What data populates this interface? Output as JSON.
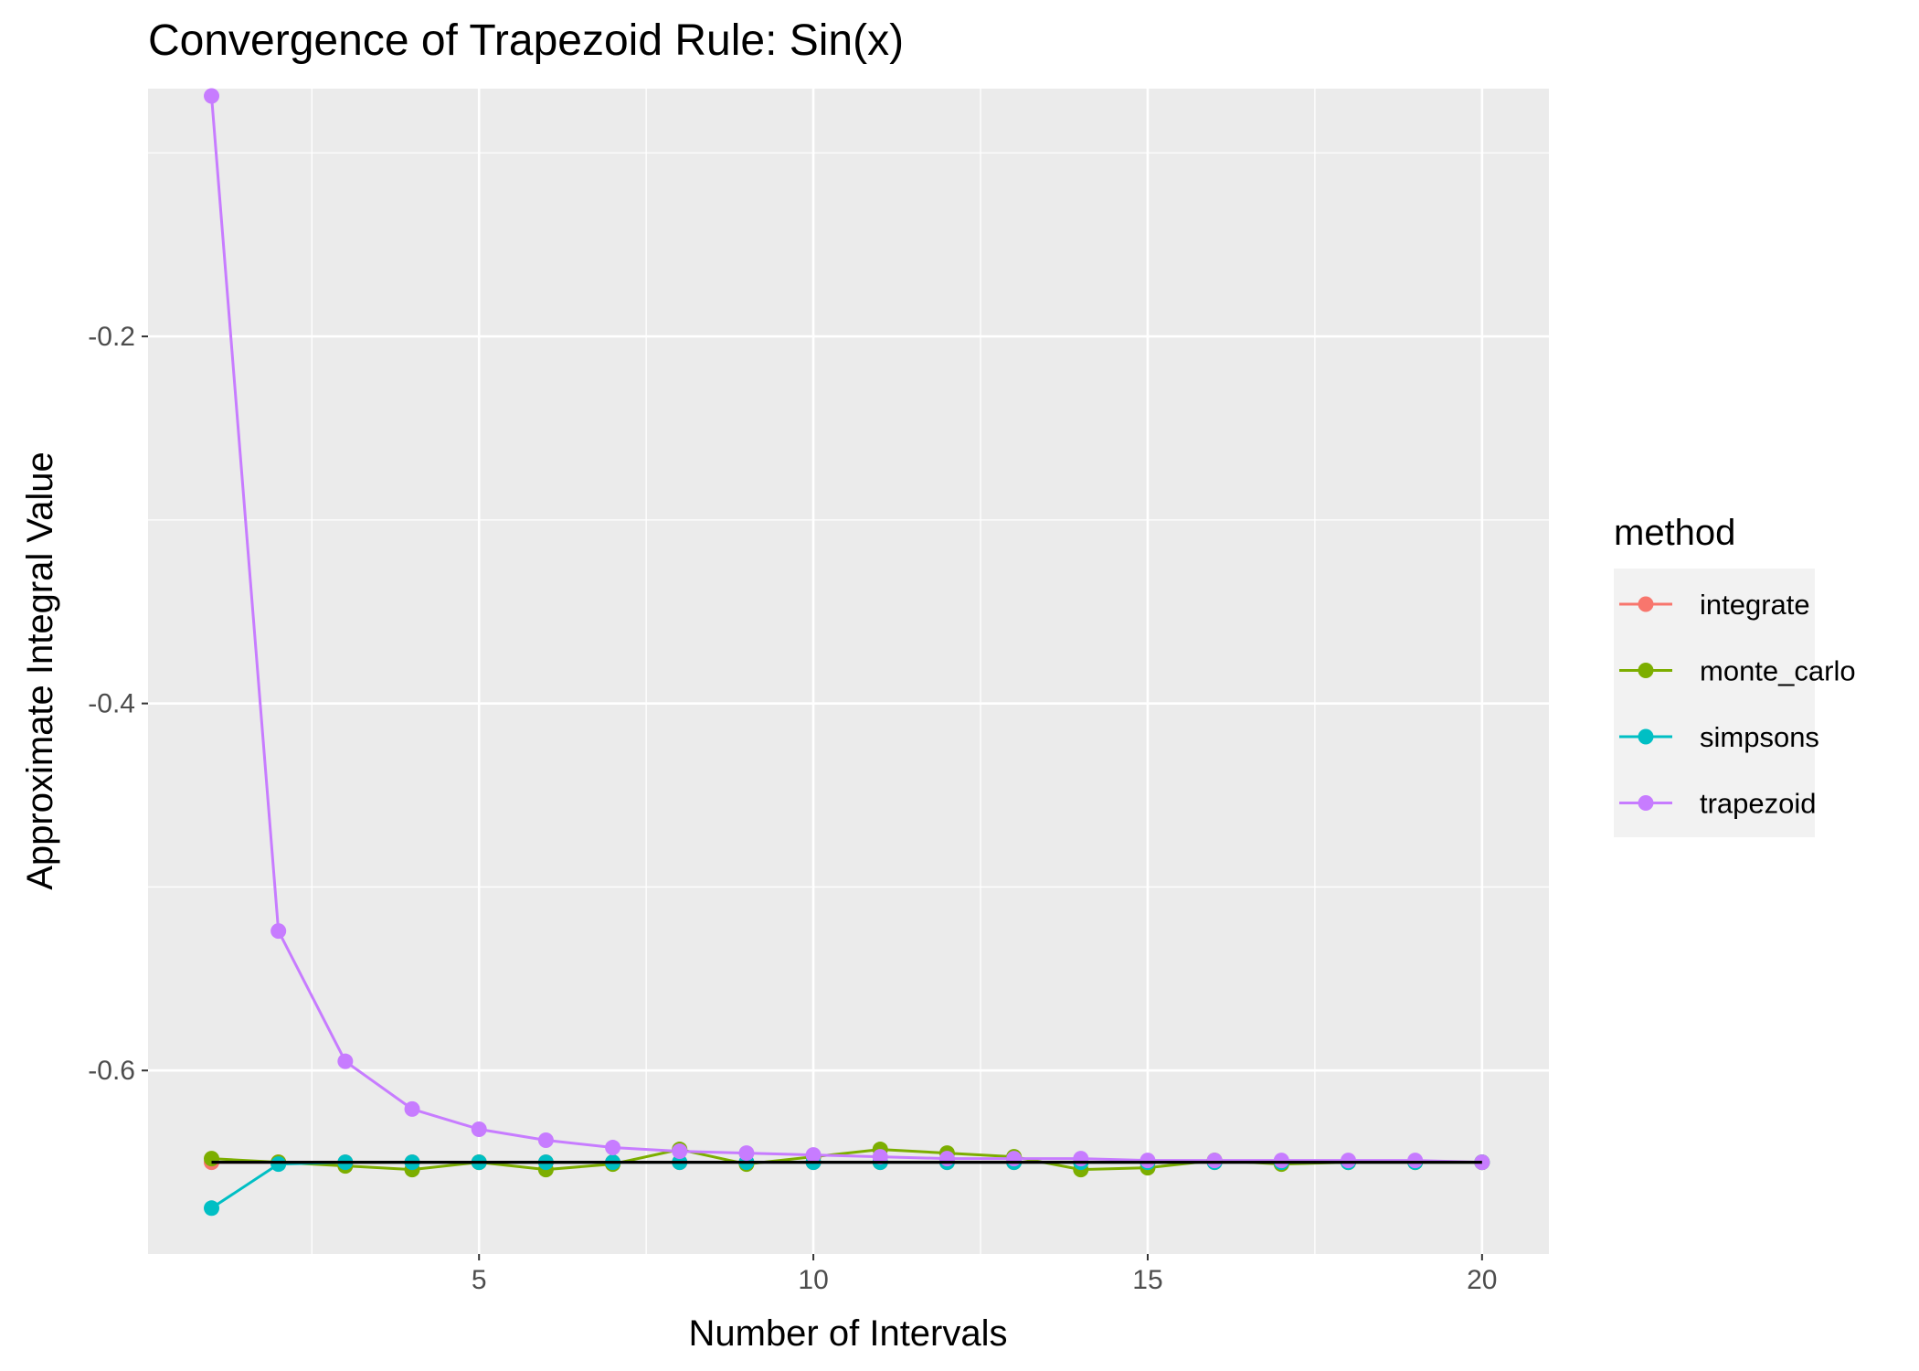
{
  "chart_data": {
    "type": "line",
    "title": "Convergence of Trapezoid Rule: Sin(x)",
    "xlabel": "Number of Intervals",
    "ylabel": "Approximate Integral Value",
    "xlim": [
      0.05,
      21.0
    ],
    "ylim": [
      -0.7,
      -0.065
    ],
    "x_ticks": [
      5,
      10,
      15,
      20
    ],
    "y_ticks": [
      -0.6,
      -0.4,
      -0.2
    ],
    "x_tick_labels": [
      "5",
      "10",
      "15",
      "20"
    ],
    "y_tick_labels": [
      "-0.6",
      "-0.4",
      "-0.2"
    ],
    "grid": true,
    "legend_position": "right",
    "legend_title": "method",
    "reference_line": {
      "y": -0.65,
      "color": "#000000"
    },
    "x": [
      1,
      2,
      3,
      4,
      5,
      6,
      7,
      8,
      9,
      10,
      11,
      12,
      13,
      14,
      15,
      16,
      17,
      18,
      19,
      20
    ],
    "series": [
      {
        "name": "integrate",
        "color": "#F8766D",
        "values": [
          -0.65,
          -0.65,
          -0.65,
          -0.65,
          -0.65,
          -0.65,
          -0.65,
          -0.65,
          -0.65,
          -0.65,
          -0.65,
          -0.65,
          -0.65,
          -0.65,
          -0.65,
          -0.65,
          -0.65,
          -0.65,
          -0.65,
          -0.65
        ]
      },
      {
        "name": "monte_carlo",
        "color": "#7CAE00",
        "values": [
          -0.648,
          -0.65,
          -0.652,
          -0.654,
          -0.65,
          -0.654,
          -0.651,
          -0.643,
          -0.651,
          -0.647,
          -0.643,
          -0.645,
          -0.647,
          -0.654,
          -0.653,
          -0.649,
          -0.651,
          -0.65,
          -0.65,
          -0.65
        ]
      },
      {
        "name": "simpsons",
        "color": "#00BFC4",
        "values": [
          -0.675,
          -0.651,
          -0.65,
          -0.65,
          -0.65,
          -0.65,
          -0.65,
          -0.65,
          -0.65,
          -0.65,
          -0.65,
          -0.65,
          -0.65,
          -0.65,
          -0.65,
          -0.65,
          -0.65,
          -0.65,
          -0.65,
          -0.65
        ]
      },
      {
        "name": "trapezoid",
        "color": "#C77CFF",
        "values": [
          -0.069,
          -0.524,
          -0.595,
          -0.621,
          -0.632,
          -0.638,
          -0.642,
          -0.644,
          -0.645,
          -0.646,
          -0.647,
          -0.648,
          -0.648,
          -0.648,
          -0.649,
          -0.649,
          -0.649,
          -0.649,
          -0.649,
          -0.65
        ]
      }
    ]
  }
}
